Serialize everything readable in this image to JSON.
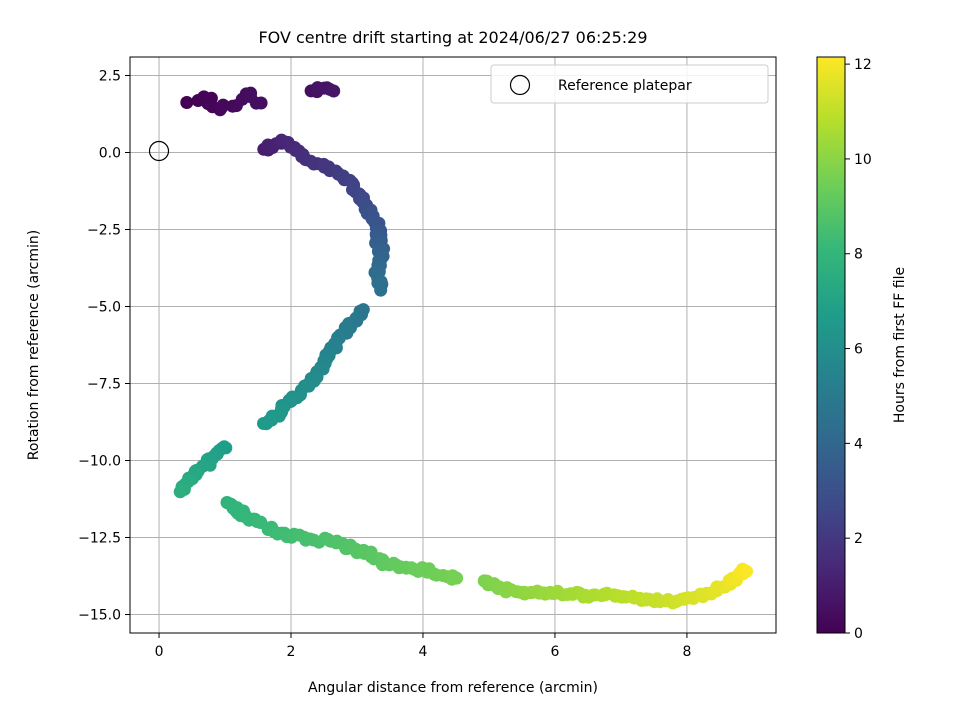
{
  "chart_data": {
    "type": "scatter",
    "title": "FOV centre drift starting at 2024/06/27 06:25:29",
    "xlabel": "Angular distance from reference (arcmin)",
    "ylabel": "Rotation from reference (arcmin)",
    "xlim": [
      -0.44,
      9.35
    ],
    "ylim": [
      -15.6,
      3.1
    ],
    "xticks": [
      0,
      2,
      4,
      6,
      8
    ],
    "xtick_labels": [
      "0",
      "2",
      "4",
      "6",
      "8"
    ],
    "yticks": [
      2.5,
      0,
      -2.5,
      -5,
      -7.5,
      -10,
      -12.5,
      -15
    ],
    "ytick_labels": [
      "2.5",
      "0.0",
      "−2.5",
      "−5.0",
      "−7.5",
      "−10.0",
      "−12.5",
      "−15.0"
    ],
    "grid": true,
    "legend": {
      "placement": "top-right",
      "label": "Reference platepar"
    },
    "reference_point": {
      "x": 0,
      "y": 0
    },
    "colormap": "viridis",
    "colorbar": {
      "label": "Hours from first FF file",
      "range": [
        0,
        12.15
      ],
      "ticks": [
        0,
        2,
        4,
        6,
        8,
        10,
        12
      ],
      "tick_labels": [
        "0",
        "2",
        "4",
        "6",
        "8",
        "10",
        "12"
      ]
    },
    "colors": {
      "viridis": [
        "#440154",
        "#482777",
        "#3e4a89",
        "#31688e",
        "#26828e",
        "#1f9e89",
        "#35b779",
        "#6ece58",
        "#b5de2b",
        "#fde725"
      ]
    },
    "series": [
      {
        "path": [
          [
            0.5,
            1.6
          ],
          [
            0.7,
            1.8
          ],
          [
            0.9,
            1.3
          ],
          [
            1.1,
            1.6
          ],
          [
            1.35,
            1.9
          ],
          [
            1.5,
            1.6
          ]
        ],
        "count": 18,
        "spread_x": 0.13,
        "spread_y": 0.22,
        "t_start": 0.0,
        "t_end": 0.5
      },
      {
        "path": [
          [
            2.3,
            2.0
          ],
          [
            2.5,
            2.1
          ],
          [
            2.65,
            2.0
          ]
        ],
        "count": 7,
        "spread_x": 0.05,
        "spread_y": 0.1,
        "t_start": 0.55,
        "t_end": 0.75
      },
      {
        "path": [
          [
            1.6,
            0.1
          ],
          [
            1.9,
            0.4
          ],
          [
            2.2,
            -0.2
          ],
          [
            2.6,
            -0.5
          ],
          [
            2.9,
            -1.0
          ],
          [
            3.1,
            -1.6
          ],
          [
            3.3,
            -2.4
          ],
          [
            3.35,
            -3.2
          ],
          [
            3.3,
            -4.0
          ],
          [
            3.35,
            -4.4
          ]
        ],
        "count": 80,
        "spread_x": 0.09,
        "spread_y": 0.12,
        "t_start": 1.0,
        "t_end": 4.5
      },
      {
        "path": [
          [
            3.1,
            -5.1
          ],
          [
            2.9,
            -5.6
          ],
          [
            2.7,
            -6.1
          ],
          [
            2.5,
            -6.8
          ],
          [
            2.3,
            -7.5
          ],
          [
            2.0,
            -8.0
          ],
          [
            1.8,
            -8.5
          ],
          [
            1.6,
            -8.8
          ]
        ],
        "count": 60,
        "spread_x": 0.08,
        "spread_y": 0.12,
        "t_start": 4.7,
        "t_end": 6.6
      },
      {
        "path": [
          [
            1.0,
            -9.5
          ],
          [
            0.8,
            -9.9
          ],
          [
            0.6,
            -10.3
          ],
          [
            0.4,
            -10.7
          ],
          [
            0.3,
            -11.0
          ]
        ],
        "count": 32,
        "spread_x": 0.12,
        "spread_y": 0.18,
        "t_start": 6.7,
        "t_end": 7.6
      },
      {
        "path": [
          [
            1.0,
            -11.3
          ],
          [
            1.3,
            -11.8
          ],
          [
            1.7,
            -12.2
          ],
          [
            2.1,
            -12.5
          ],
          [
            2.6,
            -12.6
          ],
          [
            3.0,
            -12.9
          ],
          [
            3.4,
            -13.3
          ],
          [
            3.8,
            -13.5
          ],
          [
            4.2,
            -13.7
          ],
          [
            4.5,
            -13.8
          ]
        ],
        "count": 80,
        "spread_x": 0.08,
        "spread_y": 0.16,
        "t_start": 7.8,
        "t_end": 9.6
      },
      {
        "path": [
          [
            4.9,
            -13.9
          ],
          [
            5.3,
            -14.2
          ],
          [
            5.7,
            -14.3
          ],
          [
            6.2,
            -14.3
          ],
          [
            6.6,
            -14.4
          ],
          [
            7.0,
            -14.4
          ],
          [
            7.4,
            -14.5
          ],
          [
            7.8,
            -14.6
          ],
          [
            8.2,
            -14.4
          ],
          [
            8.6,
            -14.1
          ],
          [
            8.9,
            -13.5
          ]
        ],
        "count": 95,
        "spread_x": 0.07,
        "spread_y": 0.12,
        "t_start": 9.7,
        "t_end": 12.1
      }
    ]
  }
}
